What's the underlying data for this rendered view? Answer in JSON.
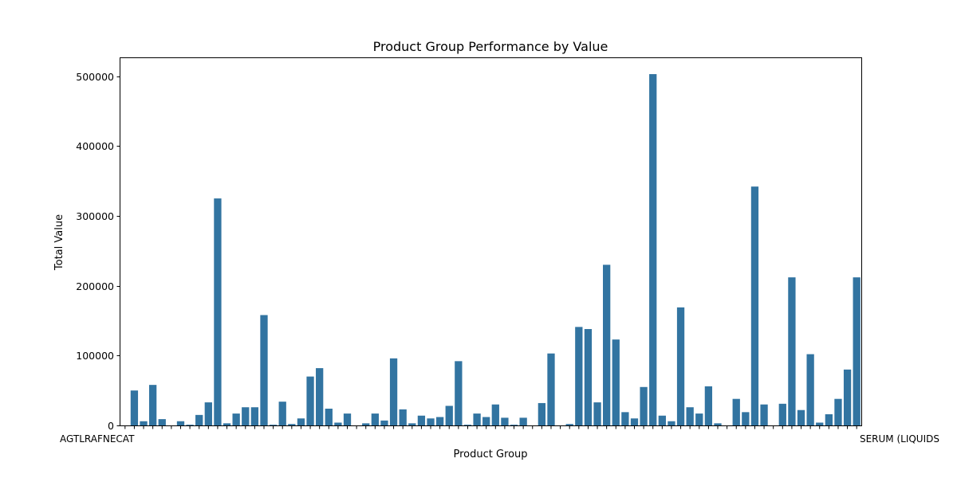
{
  "chart_data": {
    "type": "bar",
    "title": "Product Group Performance by Value",
    "xlabel": "Product Group",
    "ylabel": "Total Value",
    "ylim": [
      0,
      527000
    ],
    "yticks": [
      0,
      100000,
      200000,
      300000,
      400000,
      500000
    ],
    "ytick_labels": [
      "0",
      "100000",
      "200000",
      "300000",
      "400000",
      "500000"
    ],
    "first_category_label": "AGTLRAFNECAT",
    "last_category_label": "SERUM (LIQUIDS",
    "grid": false,
    "bar_color": "#3274a1",
    "values": [
      0,
      50000,
      6000,
      58000,
      9000,
      0,
      6000,
      1000,
      15000,
      33000,
      325000,
      3000,
      17000,
      26000,
      26000,
      158000,
      1000,
      34000,
      2000,
      10000,
      70000,
      82000,
      24000,
      4000,
      17000,
      0,
      3000,
      17000,
      7000,
      96000,
      23000,
      3000,
      14000,
      10000,
      12000,
      28000,
      92000,
      1000,
      17000,
      12000,
      30000,
      11000,
      1000,
      11000,
      0,
      32000,
      103000,
      0,
      2000,
      141000,
      138000,
      33000,
      230000,
      123000,
      19000,
      10000,
      55000,
      503000,
      14000,
      6000,
      169000,
      26000,
      17000,
      56000,
      3000,
      0,
      38000,
      19000,
      342000,
      30000,
      0,
      31000,
      212000,
      22000,
      102000,
      4000,
      16000,
      38000,
      80000,
      212000
    ]
  }
}
